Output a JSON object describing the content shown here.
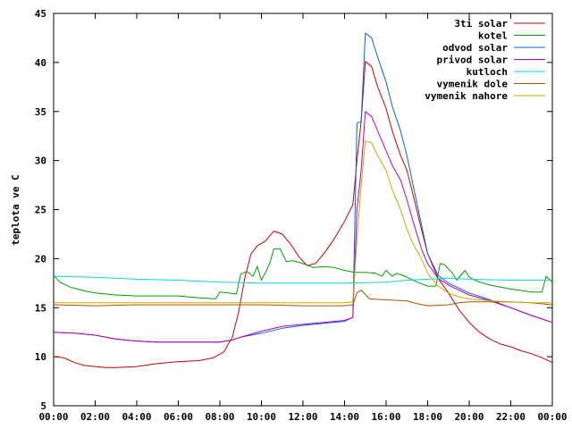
{
  "chart_data": {
    "type": "line",
    "ylabel": "teplota ve C",
    "xlabel": "",
    "x_ticks": [
      "00:00",
      "02:00",
      "04:00",
      "06:00",
      "08:00",
      "10:00",
      "12:00",
      "14:00",
      "16:00",
      "18:00",
      "20:00",
      "22:00",
      "00:00"
    ],
    "y_ticks": [
      5,
      10,
      15,
      20,
      25,
      30,
      35,
      40,
      45
    ],
    "xlim": [
      0,
      24
    ],
    "ylim": [
      5,
      45
    ],
    "legend_position": "top-right",
    "grid": false,
    "series": [
      {
        "name": "3ti solar",
        "color": "#cc0000",
        "points": [
          [
            0,
            10
          ],
          [
            0.5,
            9.9
          ],
          [
            1,
            9.4
          ],
          [
            1.5,
            9.1
          ],
          [
            2,
            9.0
          ],
          [
            2.5,
            8.9
          ],
          [
            3,
            8.9
          ],
          [
            4,
            9.0
          ],
          [
            5,
            9.3
          ],
          [
            6,
            9.5
          ],
          [
            7,
            9.6
          ],
          [
            7.7,
            9.9
          ],
          [
            8.2,
            10.5
          ],
          [
            8.6,
            12
          ],
          [
            8.9,
            14.5
          ],
          [
            9.2,
            18
          ],
          [
            9.5,
            20.5
          ],
          [
            9.8,
            21.3
          ],
          [
            10.2,
            21.8
          ],
          [
            10.6,
            22.8
          ],
          [
            11.0,
            22.5
          ],
          [
            11.4,
            21.5
          ],
          [
            11.8,
            20.2
          ],
          [
            12.2,
            19.3
          ],
          [
            12.6,
            19.5
          ],
          [
            13.0,
            20.5
          ],
          [
            13.5,
            22
          ],
          [
            14.0,
            23.8
          ],
          [
            14.4,
            25.5
          ],
          [
            14.6,
            30
          ],
          [
            14.8,
            34
          ],
          [
            15.0,
            40.1
          ],
          [
            15.3,
            39.6
          ],
          [
            15.6,
            37.5
          ],
          [
            16.0,
            35.3
          ],
          [
            16.3,
            33
          ],
          [
            16.7,
            30.5
          ],
          [
            17.0,
            29
          ],
          [
            17.3,
            26.5
          ],
          [
            17.7,
            23
          ],
          [
            18.0,
            20.5
          ],
          [
            18.5,
            18
          ],
          [
            19.0,
            16.5
          ],
          [
            19.5,
            14.8
          ],
          [
            20.0,
            13.5
          ],
          [
            20.5,
            12.5
          ],
          [
            21.0,
            11.8
          ],
          [
            21.5,
            11.3
          ],
          [
            22.0,
            11.0
          ],
          [
            22.5,
            10.6
          ],
          [
            23.0,
            10.3
          ],
          [
            23.5,
            9.9
          ],
          [
            24,
            9.4
          ]
        ]
      },
      {
        "name": "kotel",
        "color": "#00a000",
        "points": [
          [
            0,
            18.3
          ],
          [
            0.3,
            17.6
          ],
          [
            0.8,
            17.1
          ],
          [
            1.5,
            16.7
          ],
          [
            2,
            16.5
          ],
          [
            3,
            16.3
          ],
          [
            4,
            16.2
          ],
          [
            5,
            16.2
          ],
          [
            6,
            16.2
          ],
          [
            7,
            16.0
          ],
          [
            7.8,
            15.9
          ],
          [
            8.0,
            16.6
          ],
          [
            8.8,
            16.4
          ],
          [
            9.0,
            18.4
          ],
          [
            9.3,
            18.7
          ],
          [
            9.6,
            18.2
          ],
          [
            9.8,
            19.2
          ],
          [
            10.0,
            17.8
          ],
          [
            10.2,
            18.6
          ],
          [
            10.4,
            19.5
          ],
          [
            10.6,
            21.0
          ],
          [
            10.9,
            21.0
          ],
          [
            11.2,
            19.7
          ],
          [
            11.5,
            19.8
          ],
          [
            12.0,
            19.5
          ],
          [
            12.5,
            19.1
          ],
          [
            13.0,
            19.2
          ],
          [
            13.5,
            19.1
          ],
          [
            14.0,
            18.8
          ],
          [
            14.5,
            18.6
          ],
          [
            15.0,
            18.6
          ],
          [
            15.5,
            18.5
          ],
          [
            15.8,
            18.2
          ],
          [
            16.0,
            18.8
          ],
          [
            16.3,
            18.2
          ],
          [
            16.5,
            18.5
          ],
          [
            16.8,
            18.3
          ],
          [
            17.0,
            18.1
          ],
          [
            17.5,
            17.6
          ],
          [
            18.0,
            17.2
          ],
          [
            18.4,
            17.2
          ],
          [
            18.6,
            19.5
          ],
          [
            18.8,
            19.4
          ],
          [
            19.2,
            18.5
          ],
          [
            19.4,
            17.8
          ],
          [
            19.6,
            18.3
          ],
          [
            19.8,
            18.8
          ],
          [
            20.0,
            18.1
          ],
          [
            20.5,
            17.6
          ],
          [
            21.0,
            17.3
          ],
          [
            22.0,
            16.9
          ],
          [
            23.0,
            16.6
          ],
          [
            23.5,
            16.6
          ],
          [
            23.7,
            18.2
          ],
          [
            24,
            17.6
          ]
        ]
      },
      {
        "name": "odvod solar",
        "color": "#0066dd",
        "points": [
          [
            0,
            12.5
          ],
          [
            1,
            12.4
          ],
          [
            2,
            12.2
          ],
          [
            3,
            11.8
          ],
          [
            4,
            11.6
          ],
          [
            5,
            11.5
          ],
          [
            6,
            11.5
          ],
          [
            7,
            11.5
          ],
          [
            8,
            11.5
          ],
          [
            8.6,
            11.7
          ],
          [
            9,
            12.0
          ],
          [
            9.5,
            12.2
          ],
          [
            10,
            12.4
          ],
          [
            11,
            12.9
          ],
          [
            12,
            13.2
          ],
          [
            13,
            13.4
          ],
          [
            14,
            13.6
          ],
          [
            14.4,
            14.0
          ],
          [
            14.6,
            33.8
          ],
          [
            14.8,
            34.0
          ],
          [
            15.0,
            43.0
          ],
          [
            15.3,
            42.5
          ],
          [
            15.6,
            40.5
          ],
          [
            16.0,
            38.0
          ],
          [
            16.3,
            35.5
          ],
          [
            16.7,
            33.0
          ],
          [
            17.0,
            30.5
          ],
          [
            17.3,
            27.5
          ],
          [
            17.7,
            23.5
          ],
          [
            18.0,
            20.5
          ],
          [
            18.5,
            18.3
          ],
          [
            19.0,
            17.5
          ],
          [
            19.5,
            17.0
          ],
          [
            20.0,
            16.5
          ],
          [
            21.0,
            15.8
          ],
          [
            22.0,
            15.0
          ],
          [
            23.0,
            14.2
          ],
          [
            24,
            13.5
          ]
        ]
      },
      {
        "name": "privod solar",
        "color": "#bb00bb",
        "points": [
          [
            0,
            12.5
          ],
          [
            1,
            12.4
          ],
          [
            2,
            12.2
          ],
          [
            3,
            11.8
          ],
          [
            4,
            11.6
          ],
          [
            5,
            11.5
          ],
          [
            6,
            11.5
          ],
          [
            7,
            11.5
          ],
          [
            8,
            11.5
          ],
          [
            8.6,
            11.7
          ],
          [
            9,
            12.0
          ],
          [
            9.5,
            12.3
          ],
          [
            10,
            12.6
          ],
          [
            11,
            13.1
          ],
          [
            12,
            13.3
          ],
          [
            13,
            13.5
          ],
          [
            14,
            13.7
          ],
          [
            14.4,
            14.0
          ],
          [
            14.6,
            25.0
          ],
          [
            14.8,
            29.0
          ],
          [
            15.0,
            35.0
          ],
          [
            15.3,
            34.5
          ],
          [
            15.6,
            33.0
          ],
          [
            16.0,
            31.0
          ],
          [
            16.3,
            29.5
          ],
          [
            16.7,
            28.0
          ],
          [
            17.0,
            26.0
          ],
          [
            17.3,
            23.8
          ],
          [
            17.7,
            21.0
          ],
          [
            18.0,
            19.5
          ],
          [
            18.5,
            18.0
          ],
          [
            19.0,
            17.3
          ],
          [
            19.5,
            16.8
          ],
          [
            20.0,
            16.3
          ],
          [
            21.0,
            15.7
          ],
          [
            22.0,
            15.0
          ],
          [
            23.0,
            14.2
          ],
          [
            24,
            13.5
          ]
        ]
      },
      {
        "name": "kutloch",
        "color": "#00dddd",
        "points": [
          [
            0,
            18.2
          ],
          [
            2,
            18.1
          ],
          [
            4,
            17.9
          ],
          [
            6,
            17.8
          ],
          [
            8,
            17.6
          ],
          [
            10,
            17.5
          ],
          [
            12,
            17.5
          ],
          [
            14,
            17.5
          ],
          [
            16,
            17.6
          ],
          [
            17,
            17.8
          ],
          [
            18,
            17.9
          ],
          [
            19,
            18.0
          ],
          [
            20,
            17.9
          ],
          [
            22,
            17.8
          ],
          [
            24,
            17.8
          ]
        ]
      },
      {
        "name": "vymenik dole",
        "color": "#aa5500",
        "points": [
          [
            0,
            15.3
          ],
          [
            2,
            15.2
          ],
          [
            4,
            15.3
          ],
          [
            6,
            15.3
          ],
          [
            8,
            15.3
          ],
          [
            10,
            15.3
          ],
          [
            12,
            15.2
          ],
          [
            14,
            15.2
          ],
          [
            14.4,
            15.3
          ],
          [
            14.6,
            16.5
          ],
          [
            14.8,
            16.8
          ],
          [
            15.2,
            15.9
          ],
          [
            16,
            15.8
          ],
          [
            17,
            15.7
          ],
          [
            17.5,
            15.4
          ],
          [
            18,
            15.2
          ],
          [
            19,
            15.3
          ],
          [
            19.5,
            15.5
          ],
          [
            20,
            15.6
          ],
          [
            21,
            15.6
          ],
          [
            22,
            15.6
          ],
          [
            23,
            15.5
          ],
          [
            24,
            15.3
          ]
        ]
      },
      {
        "name": "vymenik nahore",
        "color": "#ccaa00",
        "points": [
          [
            0,
            15.5
          ],
          [
            2,
            15.5
          ],
          [
            4,
            15.5
          ],
          [
            6,
            15.5
          ],
          [
            8,
            15.5
          ],
          [
            10,
            15.5
          ],
          [
            12,
            15.5
          ],
          [
            14,
            15.5
          ],
          [
            14.4,
            15.6
          ],
          [
            14.6,
            22.0
          ],
          [
            14.8,
            27.5
          ],
          [
            15.0,
            32.0
          ],
          [
            15.3,
            31.8
          ],
          [
            15.6,
            30.5
          ],
          [
            16.0,
            29.0
          ],
          [
            16.3,
            27.0
          ],
          [
            16.7,
            25.0
          ],
          [
            17.0,
            23.0
          ],
          [
            17.3,
            21.5
          ],
          [
            17.7,
            20.0
          ],
          [
            18.0,
            18.5
          ],
          [
            18.5,
            17.2
          ],
          [
            19.0,
            16.5
          ],
          [
            19.5,
            16.1
          ],
          [
            20.0,
            15.9
          ],
          [
            21,
            15.7
          ],
          [
            22,
            15.6
          ],
          [
            23,
            15.5
          ],
          [
            24,
            15.5
          ]
        ]
      }
    ]
  }
}
